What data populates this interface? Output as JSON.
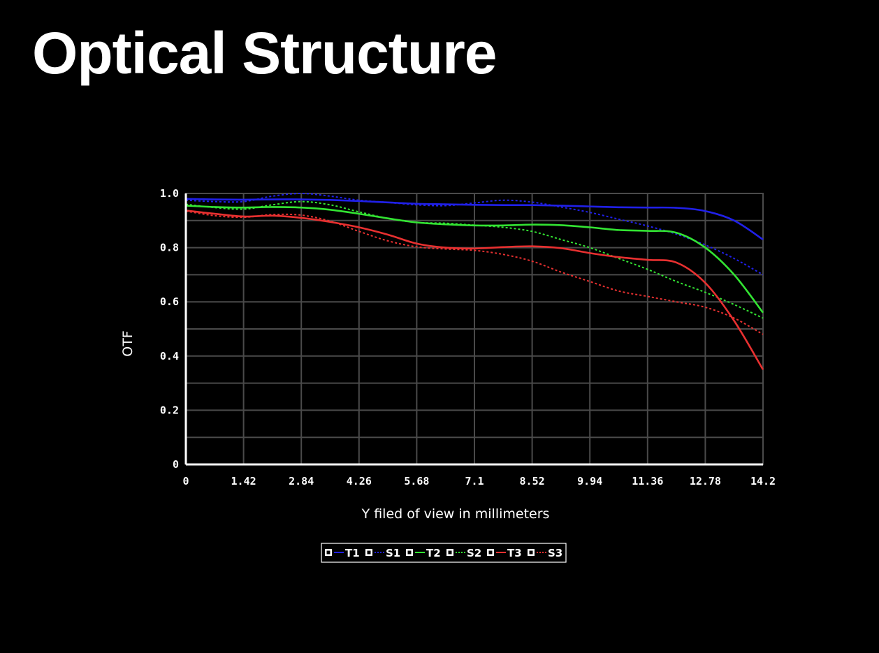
{
  "page": {
    "title": "Optical Structure"
  },
  "chart_data": {
    "type": "line",
    "xlabel": "Y filed of view in millimeters",
    "ylabel": "OTF",
    "xlim": [
      0,
      14.2
    ],
    "ylim": [
      0,
      1.0
    ],
    "x_ticks": [
      "0",
      "1.42",
      "2.84",
      "4.26",
      "5.68",
      "7.1",
      "8.52",
      "9.94",
      "11.36",
      "12.78",
      "14.2"
    ],
    "y_ticks": [
      "0",
      "0.2",
      "0.4",
      "0.6",
      "0.8",
      "1.0"
    ],
    "grid": true,
    "legend_position": "bottom-center",
    "x": [
      0,
      0.71,
      1.42,
      2.13,
      2.84,
      3.55,
      4.26,
      4.97,
      5.68,
      6.39,
      7.1,
      7.81,
      8.52,
      9.23,
      9.94,
      10.65,
      11.36,
      12.07,
      12.78,
      13.49,
      14.2
    ],
    "series": [
      {
        "name": "T1",
        "color": "#2020e8",
        "dash": "solid",
        "values": [
          0.98,
          0.978,
          0.977,
          0.978,
          0.978,
          0.976,
          0.972,
          0.967,
          0.962,
          0.96,
          0.958,
          0.957,
          0.957,
          0.955,
          0.952,
          0.949,
          0.948,
          0.947,
          0.935,
          0.9,
          0.83
        ]
      },
      {
        "name": "S1",
        "color": "#2020e8",
        "dash": "dotted",
        "values": [
          0.975,
          0.97,
          0.97,
          0.99,
          1.0,
          0.99,
          0.975,
          0.967,
          0.958,
          0.955,
          0.965,
          0.975,
          0.968,
          0.95,
          0.93,
          0.905,
          0.88,
          0.85,
          0.81,
          0.76,
          0.7
        ]
      },
      {
        "name": "T2",
        "color": "#33e433",
        "dash": "solid",
        "values": [
          0.955,
          0.95,
          0.948,
          0.95,
          0.948,
          0.94,
          0.925,
          0.908,
          0.893,
          0.886,
          0.882,
          0.882,
          0.885,
          0.883,
          0.875,
          0.865,
          0.862,
          0.855,
          0.8,
          0.7,
          0.56
        ]
      },
      {
        "name": "S2",
        "color": "#33e433",
        "dash": "dotted",
        "values": [
          0.96,
          0.948,
          0.942,
          0.958,
          0.97,
          0.958,
          0.932,
          0.908,
          0.893,
          0.89,
          0.883,
          0.875,
          0.86,
          0.83,
          0.8,
          0.76,
          0.72,
          0.675,
          0.635,
          0.59,
          0.54
        ]
      },
      {
        "name": "T3",
        "color": "#e83030",
        "dash": "solid",
        "values": [
          0.937,
          0.925,
          0.915,
          0.918,
          0.91,
          0.895,
          0.875,
          0.848,
          0.815,
          0.8,
          0.797,
          0.802,
          0.805,
          0.798,
          0.78,
          0.765,
          0.755,
          0.745,
          0.67,
          0.53,
          0.35
        ]
      },
      {
        "name": "S3",
        "color": "#e83030",
        "dash": "dotted",
        "values": [
          0.935,
          0.918,
          0.912,
          0.922,
          0.92,
          0.898,
          0.86,
          0.825,
          0.803,
          0.795,
          0.79,
          0.775,
          0.75,
          0.71,
          0.675,
          0.64,
          0.62,
          0.6,
          0.58,
          0.54,
          0.48
        ]
      }
    ]
  }
}
